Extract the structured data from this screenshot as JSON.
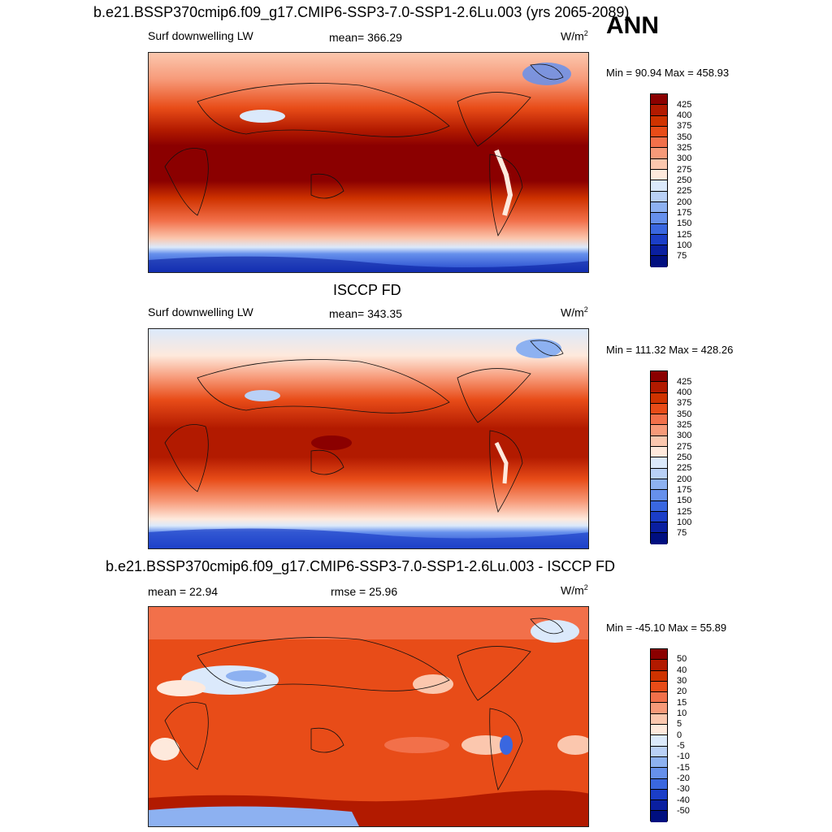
{
  "header": {
    "case_title": "b.e21.BSSP370cmip6.f09_g17.CMIP6-SSP3-7.0-SSP1-2.6Lu.003 (yrs 2065-2089)",
    "season": "ANN"
  },
  "panels": [
    {
      "title": "",
      "variable": "Surf downwelling LW",
      "stat": "mean= 366.29",
      "units_base": "W/m",
      "units_exp": "2",
      "minmax": "Min =  90.94 Max = 458.93",
      "colorbar_labels": [
        "425",
        "400",
        "375",
        "350",
        "325",
        "300",
        "275",
        "250",
        "225",
        "200",
        "175",
        "150",
        "125",
        "100",
        "75"
      ],
      "colorbar_colors": [
        "#8b0000",
        "#b21a00",
        "#cf3300",
        "#e84c18",
        "#f2704a",
        "#f79a79",
        "#fbc7ae",
        "#fee9dc",
        "#dbe9fb",
        "#b9d0f6",
        "#8db1f1",
        "#6690ec",
        "#3a67e0",
        "#1b3ec8",
        "#0a1fa0",
        "#000f80"
      ]
    },
    {
      "title": "ISCCP FD",
      "variable": "Surf downwelling LW",
      "stat": "mean= 343.35",
      "units_base": "W/m",
      "units_exp": "2",
      "minmax": "Min = 111.32 Max = 428.26",
      "colorbar_labels": [
        "425",
        "400",
        "375",
        "350",
        "325",
        "300",
        "275",
        "250",
        "225",
        "200",
        "175",
        "150",
        "125",
        "100",
        "75"
      ],
      "colorbar_colors": [
        "#8b0000",
        "#b21a00",
        "#cf3300",
        "#e84c18",
        "#f2704a",
        "#f79a79",
        "#fbc7ae",
        "#fee9dc",
        "#dbe9fb",
        "#b9d0f6",
        "#8db1f1",
        "#6690ec",
        "#3a67e0",
        "#1b3ec8",
        "#0a1fa0",
        "#000f80"
      ]
    },
    {
      "title": "b.e21.BSSP370cmip6.f09_g17.CMIP6-SSP3-7.0-SSP1-2.6Lu.003 - ISCCP FD",
      "variable": "",
      "stat_left": "mean =  22.94",
      "stat": "rmse =  25.96",
      "units_base": "W/m",
      "units_exp": "2",
      "minmax": "Min = -45.10 Max =  55.89",
      "colorbar_labels": [
        "50",
        "40",
        "30",
        "20",
        "15",
        "10",
        "5",
        "0",
        "-5",
        "-10",
        "-15",
        "-20",
        "-30",
        "-40",
        "-50"
      ],
      "colorbar_colors": [
        "#8b0000",
        "#b21a00",
        "#cf3300",
        "#e84c18",
        "#f2704a",
        "#f79a79",
        "#fbc7ae",
        "#fee9dc",
        "#dbe9fb",
        "#b9d0f6",
        "#8db1f1",
        "#6690ec",
        "#3a67e0",
        "#1b3ec8",
        "#0a1fa0",
        "#000f80"
      ]
    }
  ]
}
